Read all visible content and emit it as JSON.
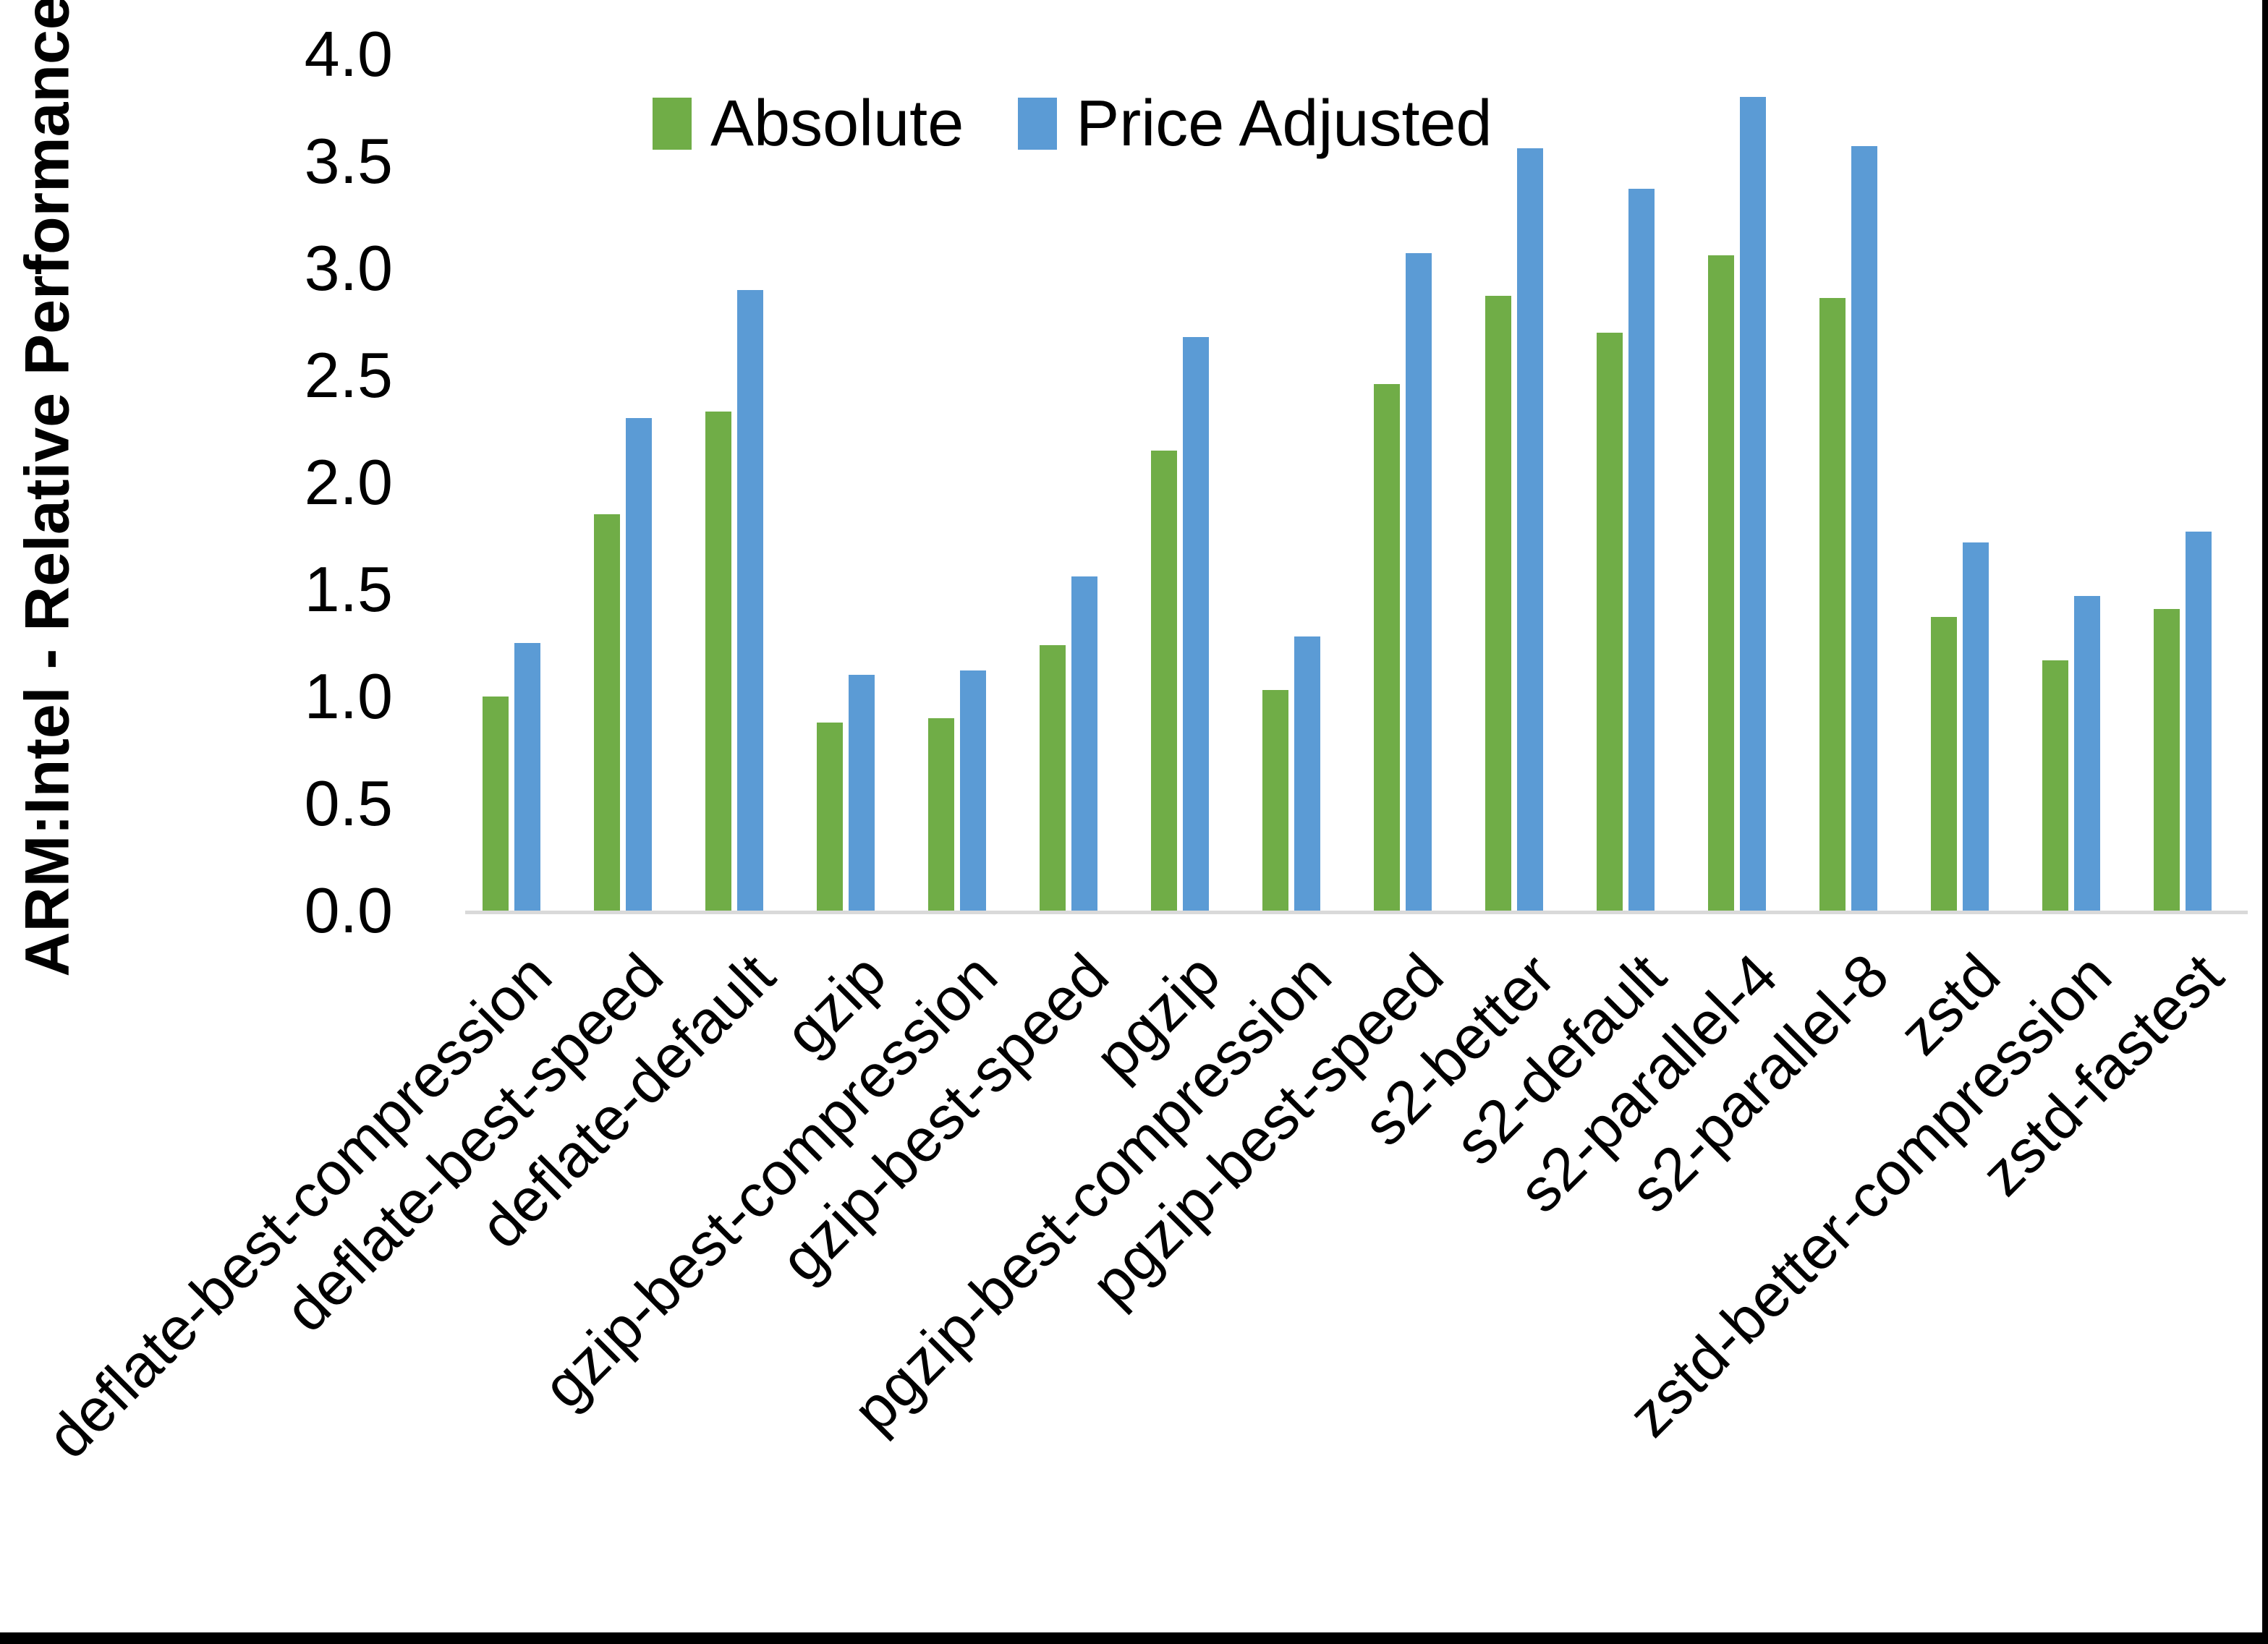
{
  "figure": {
    "background": "#ffffff",
    "page_edge_color": "#000000"
  },
  "chart_data": {
    "type": "bar",
    "title": "",
    "ylabel": "ARM:Intel - Relative Performance",
    "xlabel": "",
    "ylim": [
      0,
      4
    ],
    "ytick_step": 0.5,
    "yticks": [
      "0.0",
      "0.5",
      "1.0",
      "1.5",
      "2.0",
      "2.5",
      "3.0",
      "3.5",
      "4.0"
    ],
    "grid": false,
    "legend_position": "top-center",
    "axis_line_color": "#D9D9D9",
    "text_color": "#000000",
    "categories": [
      "deflate-best-compression",
      "deflate-best-speed",
      "deflate-default",
      "gzip",
      "gzip-best-compression",
      "gzip-best-speed",
      "pgzip",
      "pgzip-best-compression",
      "pgzip-best-speed",
      "s2-better",
      "s2-default",
      "s2-parallel-4",
      "s2-parallel-8",
      "zstd",
      "zstd-better-compression",
      "zstd-fastest"
    ],
    "series": [
      {
        "name": "Absolute",
        "color": "#70AD47",
        "values": [
          1.0,
          1.85,
          2.33,
          0.88,
          0.9,
          1.24,
          2.15,
          1.03,
          2.46,
          2.87,
          2.7,
          3.06,
          2.86,
          1.37,
          1.17,
          1.41
        ]
      },
      {
        "name": "Price Adjusted",
        "color": "#5B9BD5",
        "values": [
          1.25,
          2.3,
          2.9,
          1.1,
          1.12,
          1.56,
          2.68,
          1.28,
          3.07,
          3.56,
          3.37,
          3.8,
          3.57,
          1.72,
          1.47,
          1.77
        ]
      }
    ]
  }
}
